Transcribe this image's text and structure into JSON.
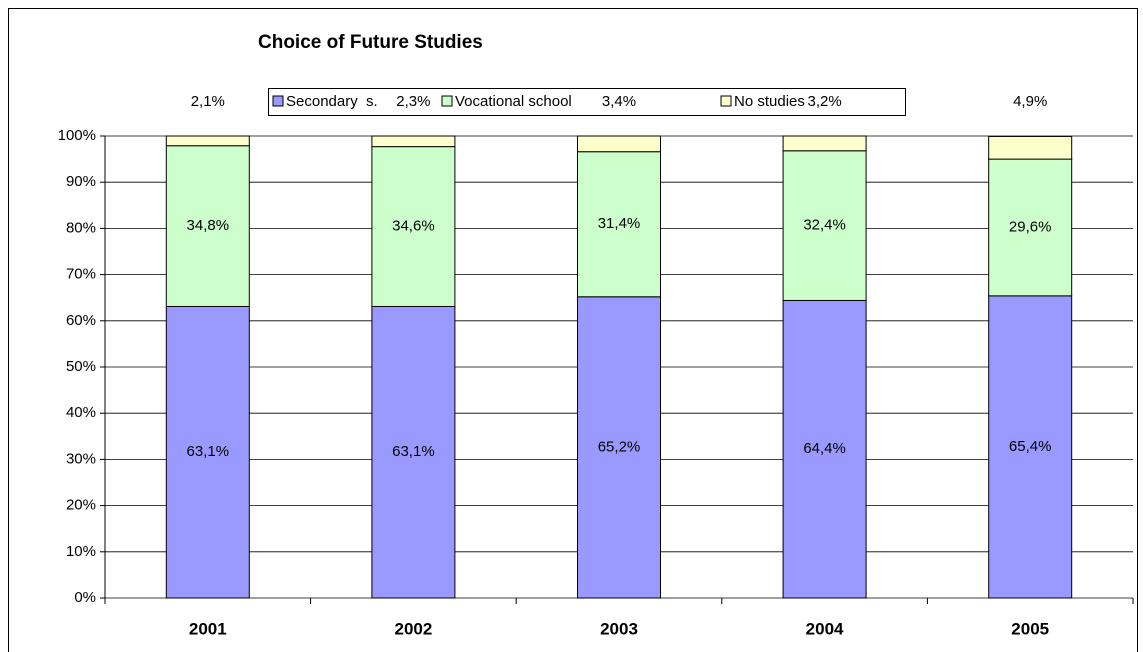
{
  "chart_data": {
    "type": "stacked_bar",
    "title": "Choice of Future Studies",
    "categories": [
      "2001",
      "2002",
      "2003",
      "2004",
      "2005"
    ],
    "series": [
      {
        "name": "Secondary  s.",
        "color": "#9999ff",
        "values": [
          63.1,
          63.1,
          65.2,
          64.4,
          65.4
        ],
        "value_labels": [
          "63,1%",
          "63,1%",
          "65,2%",
          "64,4%",
          "65,4%"
        ]
      },
      {
        "name": "Vocational school",
        "color": "#ccffcc",
        "values": [
          34.8,
          34.6,
          31.4,
          32.4,
          29.6
        ],
        "value_labels": [
          "34,8%",
          "34,6%",
          "31,4%",
          "32,4%",
          "29,6%"
        ]
      },
      {
        "name": "No studies",
        "color": "#ffffcc",
        "values": [
          2.1,
          2.3,
          3.4,
          3.2,
          4.9
        ],
        "value_labels": [
          "2,1%",
          "2,3%",
          "3,4%",
          "3,2%",
          "4,9%"
        ]
      }
    ],
    "ylim": [
      0,
      100
    ],
    "yticks": [
      {
        "value": 0,
        "label": "0%"
      },
      {
        "value": 10,
        "label": "10%"
      },
      {
        "value": 20,
        "label": "20%"
      },
      {
        "value": 30,
        "label": "30%"
      },
      {
        "value": 40,
        "label": "40%"
      },
      {
        "value": 50,
        "label": "50%"
      },
      {
        "value": 60,
        "label": "60%"
      },
      {
        "value": 70,
        "label": "70%"
      },
      {
        "value": 80,
        "label": "80%"
      },
      {
        "value": 90,
        "label": "90%"
      },
      {
        "value": 100,
        "label": "100%"
      }
    ],
    "grid": true,
    "legend": "top"
  }
}
